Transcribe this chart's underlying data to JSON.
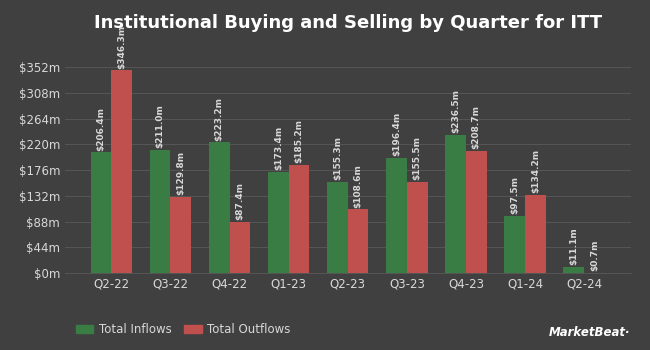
{
  "title": "Institutional Buying and Selling by Quarter for ITT",
  "quarters": [
    "Q2-22",
    "Q3-22",
    "Q4-22",
    "Q1-23",
    "Q2-23",
    "Q3-23",
    "Q4-23",
    "Q1-24",
    "Q2-24"
  ],
  "inflows": [
    206.4,
    211.0,
    223.2,
    173.4,
    155.3,
    196.4,
    236.5,
    97.5,
    11.1
  ],
  "outflows": [
    346.3,
    129.8,
    87.4,
    185.2,
    108.6,
    155.5,
    208.7,
    134.2,
    0.7
  ],
  "inflow_labels": [
    "$206.4m",
    "$211.0m",
    "$223.2m",
    "$173.4m",
    "$155.3m",
    "$196.4m",
    "$236.5m",
    "$97.5m",
    "$11.1m"
  ],
  "outflow_labels": [
    "$346.3m",
    "$129.8m",
    "$87.4m",
    "$185.2m",
    "$108.6m",
    "$155.5m",
    "$208.7m",
    "$134.2m",
    "$0.7m"
  ],
  "inflow_color": "#3a7d44",
  "outflow_color": "#c0504d",
  "background_color": "#404040",
  "text_color": "#d8d8d8",
  "grid_color": "#5a5a5a",
  "ytick_labels": [
    "$0m",
    "$44m",
    "$88m",
    "$132m",
    "$176m",
    "$220m",
    "$264m",
    "$308m",
    "$352m"
  ],
  "ytick_values": [
    0,
    44,
    88,
    132,
    176,
    220,
    264,
    308,
    352
  ],
  "ylim": [
    0,
    395
  ],
  "legend_inflow": "Total Inflows",
  "legend_outflow": "Total Outflows",
  "title_fontsize": 13,
  "label_fontsize": 6.5,
  "tick_fontsize": 8.5,
  "legend_fontsize": 8.5,
  "bar_width": 0.35
}
